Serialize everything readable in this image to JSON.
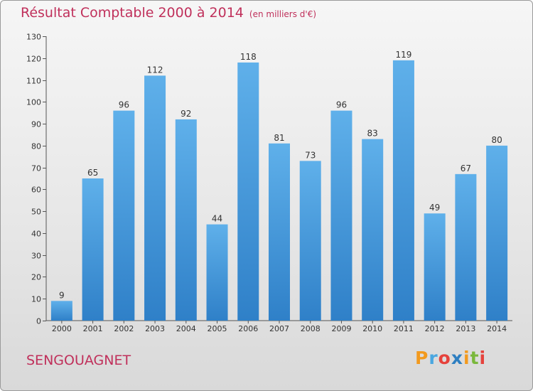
{
  "header": {
    "title": "Résultat Comptable 2000 à 2014",
    "subtitle": "(en milliers d'€)"
  },
  "footer": {
    "commune": "SENGOUAGNET",
    "brand_letters": [
      "P",
      "r",
      "o",
      "x",
      "i",
      "t",
      "i"
    ],
    "brand_colors": [
      "#f29a1e",
      "#4aa7e0",
      "#e6423c",
      "#2e7fc1",
      "#f29a1e",
      "#7ab83c",
      "#e6423c"
    ]
  },
  "colors": {
    "bar_light": "#5fb0ea",
    "bar_dark": "#2f80c8",
    "title": "#c0305b"
  },
  "chart_data": {
    "type": "bar",
    "categories": [
      "2000",
      "2001",
      "2002",
      "2003",
      "2004",
      "2005",
      "2006",
      "2007",
      "2008",
      "2009",
      "2010",
      "2011",
      "2012",
      "2013",
      "2014"
    ],
    "values": [
      9,
      65,
      96,
      112,
      92,
      44,
      118,
      81,
      73,
      96,
      83,
      119,
      49,
      67,
      80
    ],
    "title": "Résultat Comptable 2000 à 2014",
    "ylim": [
      0,
      130
    ],
    "yticks": [
      0,
      10,
      20,
      30,
      40,
      50,
      60,
      70,
      80,
      90,
      100,
      110,
      120,
      130
    ],
    "grid": false,
    "legend": "none"
  }
}
